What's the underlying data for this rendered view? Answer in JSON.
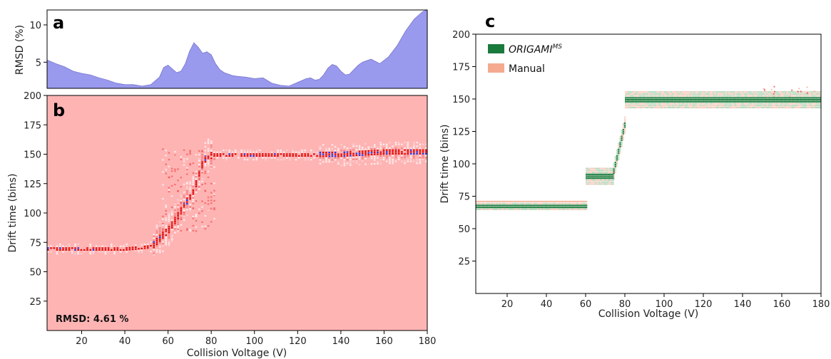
{
  "chart_data": [
    {
      "panel": "a",
      "type": "area",
      "ylabel": "RMSD (%)",
      "xlim": [
        4,
        180
      ],
      "ylim": [
        1.5,
        12
      ],
      "yticks": [
        5,
        10
      ],
      "x": [
        4,
        8,
        12,
        16,
        20,
        24,
        28,
        32,
        36,
        40,
        44,
        48,
        52,
        56,
        58,
        60,
        62,
        64,
        66,
        68,
        70,
        72,
        74,
        76,
        78,
        80,
        82,
        84,
        86,
        88,
        90,
        92,
        96,
        100,
        104,
        108,
        112,
        116,
        120,
        124,
        126,
        128,
        130,
        132,
        134,
        136,
        138,
        140,
        142,
        144,
        146,
        148,
        150,
        154,
        158,
        162,
        166,
        170,
        174,
        178,
        180
      ],
      "values": [
        5.3,
        4.8,
        4.4,
        3.8,
        3.5,
        3.3,
        2.9,
        2.6,
        2.2,
        2.0,
        2.0,
        1.8,
        2.0,
        3.0,
        4.3,
        4.6,
        4.1,
        3.6,
        3.8,
        4.8,
        6.5,
        7.6,
        7.0,
        6.2,
        6.4,
        6.0,
        4.8,
        4.0,
        3.6,
        3.4,
        3.2,
        3.1,
        3.0,
        2.8,
        2.9,
        2.2,
        1.9,
        1.8,
        2.3,
        2.8,
        2.9,
        2.6,
        2.7,
        3.3,
        4.2,
        4.7,
        4.5,
        3.8,
        3.3,
        3.4,
        4.0,
        4.6,
        5.0,
        5.4,
        4.8,
        5.7,
        7.2,
        9.2,
        10.8,
        11.8,
        12.0
      ],
      "color": "#9999ee",
      "letter": "a"
    },
    {
      "panel": "b",
      "type": "heatmap",
      "xlabel": "Collision Voltage (V)",
      "ylabel": "Drift time (bins)",
      "xlim": [
        4,
        180
      ],
      "ylim": [
        0,
        200
      ],
      "xticks": [
        20,
        40,
        60,
        80,
        100,
        120,
        140,
        160,
        180
      ],
      "yticks": [
        25,
        50,
        75,
        100,
        125,
        150,
        175,
        200
      ],
      "background": "#ffb4b4",
      "annotation": "RMSD: 4.61 %",
      "letter": "b",
      "ridge": [
        [
          4,
          70
        ],
        [
          20,
          70
        ],
        [
          40,
          70
        ],
        [
          52,
          72
        ],
        [
          56,
          80
        ],
        [
          60,
          87
        ],
        [
          64,
          98
        ],
        [
          68,
          110
        ],
        [
          72,
          122
        ],
        [
          74,
          135
        ],
        [
          76,
          145
        ],
        [
          78,
          150
        ],
        [
          80,
          150
        ],
        [
          100,
          150
        ],
        [
          120,
          150
        ],
        [
          140,
          150
        ],
        [
          160,
          152
        ],
        [
          180,
          152
        ]
      ],
      "positive_color": "#dd0000",
      "negative_color": "#2233dd"
    },
    {
      "panel": "c",
      "type": "heatmap",
      "xlabel": "Collision Voltage (V)",
      "ylabel": "Drift time (bins)",
      "xlim": [
        4,
        180
      ],
      "ylim": [
        0,
        200
      ],
      "xticks": [
        20,
        40,
        60,
        80,
        100,
        120,
        140,
        160,
        180
      ],
      "yticks": [
        25,
        50,
        75,
        100,
        125,
        150,
        175,
        200
      ],
      "letter": "c",
      "legend": [
        {
          "label": "ORIGAMI",
          "superscript": "MS",
          "italic": true,
          "color": "#1a7a3c"
        },
        {
          "label": "Manual",
          "superscript": "",
          "italic": false,
          "color": "#f5a98f"
        }
      ],
      "legend_position": "top-left",
      "segments": [
        {
          "x": [
            4,
            60
          ],
          "y": 68
        },
        {
          "x": [
            60,
            74
          ],
          "y": 91
        },
        {
          "x": [
            74,
            80
          ],
          "y": 118
        },
        {
          "x": [
            80,
            180
          ],
          "y": 150
        }
      ]
    }
  ]
}
